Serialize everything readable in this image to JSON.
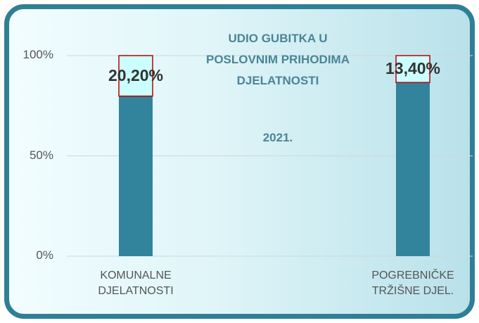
{
  "chart_data": {
    "type": "stacked_bar",
    "title": "UDIO GUBITKA U POSLOVNIM PRIHODIMA DJELATNOSTI",
    "subtitle": "2021.",
    "categories": [
      "KOMUNALNE DJELATNOSTI",
      "POGREBNIČKE TRŽIŠNE DJEL."
    ],
    "series": [
      {
        "color": "#31849b",
        "values": [
          79.8,
          86.6
        ]
      },
      {
        "color": "#ccffff",
        "values": [
          20.2,
          13.4
        ],
        "value_labels": [
          "20,20%",
          "13,40%"
        ]
      }
    ],
    "ylim": [
      0,
      100
    ],
    "yticks": [
      {
        "value": 0,
        "label": "0%"
      },
      {
        "value": 50,
        "label": "50%"
      },
      {
        "value": 100,
        "label": "100%"
      }
    ],
    "grid": true
  }
}
